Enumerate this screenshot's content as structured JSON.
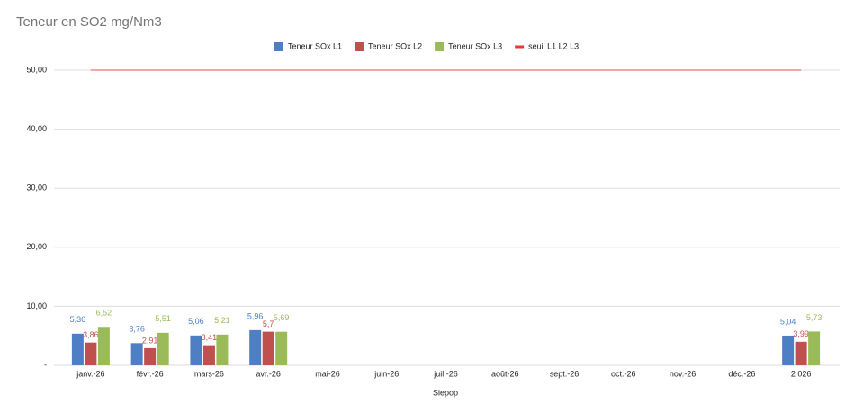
{
  "chart_data": {
    "type": "bar",
    "title": "Teneur en SO2 mg/Nm3",
    "x_label": "Siepop",
    "categories": [
      "janv.-26",
      "févr.-26",
      "mars-26",
      "avr.-26",
      "mai-26",
      "juin-26",
      "juil.-26",
      "août-26",
      "sept.-26",
      "oct.-26",
      "nov.-26",
      "déc.-26",
      "2 026"
    ],
    "series": [
      {
        "name": "Teneur SOx L1",
        "color": "#4e7fc4",
        "values": [
          5.36,
          3.76,
          5.06,
          5.96,
          null,
          null,
          null,
          null,
          null,
          null,
          null,
          null,
          5.04
        ],
        "value_labels": [
          "5,36",
          "3,76",
          "5,06",
          "5,96",
          null,
          null,
          null,
          null,
          null,
          null,
          null,
          null,
          "5,04"
        ]
      },
      {
        "name": "Teneur SOx L2",
        "color": "#c0504d",
        "values": [
          3.86,
          2.91,
          3.41,
          5.7,
          null,
          null,
          null,
          null,
          null,
          null,
          null,
          null,
          3.99
        ],
        "value_labels": [
          "3,86",
          "2,91",
          "3,41",
          "5,7",
          null,
          null,
          null,
          null,
          null,
          null,
          null,
          null,
          "3,99"
        ]
      },
      {
        "name": "Teneur SOx L3",
        "color": "#9bbb59",
        "values": [
          6.52,
          5.51,
          5.21,
          5.69,
          null,
          null,
          null,
          null,
          null,
          null,
          null,
          null,
          5.73
        ],
        "value_labels": [
          "6,52",
          "5,51",
          "5,21",
          "5,69",
          null,
          null,
          null,
          null,
          null,
          null,
          null,
          null,
          "5,73"
        ]
      },
      {
        "name": "seuil L1 L2 L3",
        "type": "line",
        "color": "#ef8a84",
        "values": [
          50,
          50,
          50,
          50,
          50,
          50,
          50,
          50,
          50,
          50,
          50,
          50,
          50
        ]
      }
    ],
    "ylim": [
      0,
      50
    ],
    "yticks": [
      {
        "value": 0,
        "label": "-"
      },
      {
        "value": 10,
        "label": "10,00"
      },
      {
        "value": 20,
        "label": "20,00"
      },
      {
        "value": 30,
        "label": "30,00"
      },
      {
        "value": 40,
        "label": "40,00"
      },
      {
        "value": 50,
        "label": "50,00"
      }
    ],
    "grid": true,
    "legend": "top"
  }
}
